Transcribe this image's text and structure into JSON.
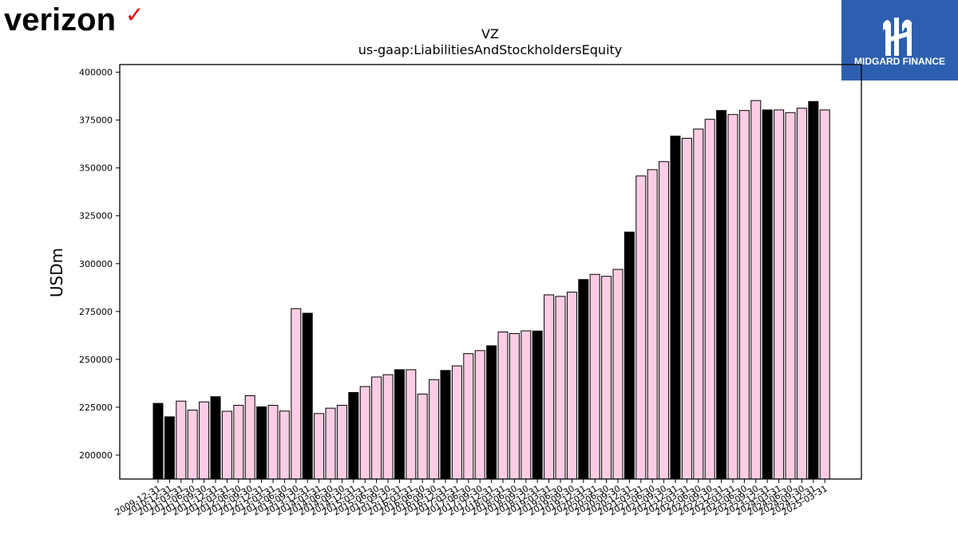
{
  "brand_left": {
    "name": "verizon",
    "check": "✓"
  },
  "brand_right": {
    "name": "MIDGARD FINANCE"
  },
  "colors": {
    "pink": "#fccde5",
    "black": "#000000",
    "badge": "#2d5fb0",
    "check": "#e00000"
  },
  "chart_data": {
    "type": "bar",
    "title": "VZ",
    "subtitle": "us-gaap:LiabilitiesAndStockholdersEquity",
    "xlabel": "",
    "ylabel": "USDm",
    "ylim": [
      187500,
      404000
    ],
    "yticks": [
      200000,
      225000,
      250000,
      275000,
      300000,
      325000,
      350000,
      375000,
      400000
    ],
    "grid": false,
    "legend": "none",
    "categories": [
      "2009-12-31",
      "2010-12-31",
      "2011-03-31",
      "2011-06-30",
      "2011-09-30",
      "2011-12-31",
      "2012-03-31",
      "2012-06-30",
      "2012-09-30",
      "2012-12-31",
      "2013-03-31",
      "2013-06-30",
      "2013-09-30",
      "2013-12-31",
      "2014-03-31",
      "2014-06-30",
      "2014-09-30",
      "2014-12-31",
      "2015-03-31",
      "2015-06-30",
      "2015-09-30",
      "2015-12-31",
      "2016-03-31",
      "2016-06-30",
      "2016-09-30",
      "2016-12-31",
      "2017-03-31",
      "2017-06-30",
      "2017-09-30",
      "2017-12-31",
      "2018-03-31",
      "2018-06-30",
      "2018-09-30",
      "2018-12-31",
      "2019-03-31",
      "2019-06-30",
      "2019-09-30",
      "2019-12-31",
      "2020-03-31",
      "2020-06-30",
      "2020-09-30",
      "2020-12-31",
      "2021-03-31",
      "2021-06-30",
      "2021-09-30",
      "2021-12-31",
      "2022-03-31",
      "2022-06-30",
      "2022-09-30",
      "2022-12-31",
      "2023-03-31",
      "2023-06-30",
      "2023-09-30",
      "2023-12-31",
      "2024-03-31",
      "2024-06-30",
      "2024-09-30",
      "2024-12-31",
      "2025-03-31"
    ],
    "values": [
      227000,
      220000,
      228200,
      223500,
      227800,
      230500,
      222900,
      226000,
      231000,
      225200,
      226000,
      223000,
      276500,
      274100,
      221700,
      224500,
      226000,
      232700,
      235800,
      240800,
      242000,
      244600,
      244600,
      231900,
      239400,
      244200,
      246600,
      253000,
      254600,
      257100,
      264300,
      263500,
      264900,
      264800,
      283700,
      282900,
      285100,
      291700,
      294400,
      293400,
      297000,
      316500,
      345800,
      349100,
      353300,
      366600,
      365500,
      370300,
      375400,
      380000,
      377900,
      380000,
      385200,
      380300,
      380300,
      378900,
      381200,
      384700,
      380300
    ],
    "fills": [
      "black",
      "black",
      "pink",
      "pink",
      "pink",
      "black",
      "pink",
      "pink",
      "pink",
      "black",
      "pink",
      "pink",
      "pink",
      "black",
      "pink",
      "pink",
      "pink",
      "black",
      "pink",
      "pink",
      "pink",
      "black",
      "pink",
      "pink",
      "pink",
      "black",
      "pink",
      "pink",
      "pink",
      "black",
      "pink",
      "pink",
      "pink",
      "black",
      "pink",
      "pink",
      "pink",
      "black",
      "pink",
      "pink",
      "pink",
      "black",
      "pink",
      "pink",
      "pink",
      "black",
      "pink",
      "pink",
      "pink",
      "black",
      "pink",
      "pink",
      "pink",
      "black",
      "pink",
      "pink",
      "pink",
      "black",
      "pink"
    ]
  }
}
